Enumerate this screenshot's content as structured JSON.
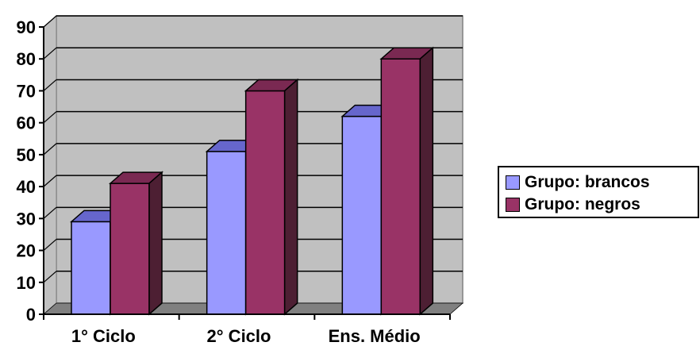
{
  "chart_data": {
    "type": "bar",
    "categories": [
      "1° Ciclo",
      "2° Ciclo",
      "Ens. Médio"
    ],
    "series": [
      {
        "name": "Grupo: brancos",
        "values": [
          29,
          51,
          62
        ],
        "color": "#9999ff",
        "top_color": "#6666cc",
        "side_color": "#5a5ab0"
      },
      {
        "name": "Grupo: negros",
        "values": [
          41,
          70,
          80
        ],
        "color": "#993366",
        "top_color": "#7a2952",
        "side_color": "#4d1f33"
      }
    ],
    "ylim": [
      0,
      90
    ],
    "yticks": [
      "0",
      "10",
      "20",
      "30",
      "40",
      "50",
      "60",
      "70",
      "80",
      "90"
    ],
    "grid": true,
    "legend_position": "right",
    "title": "",
    "xlabel": "",
    "ylabel": "",
    "plot_background": "#c0c0c0",
    "floor_color": "#808080"
  }
}
